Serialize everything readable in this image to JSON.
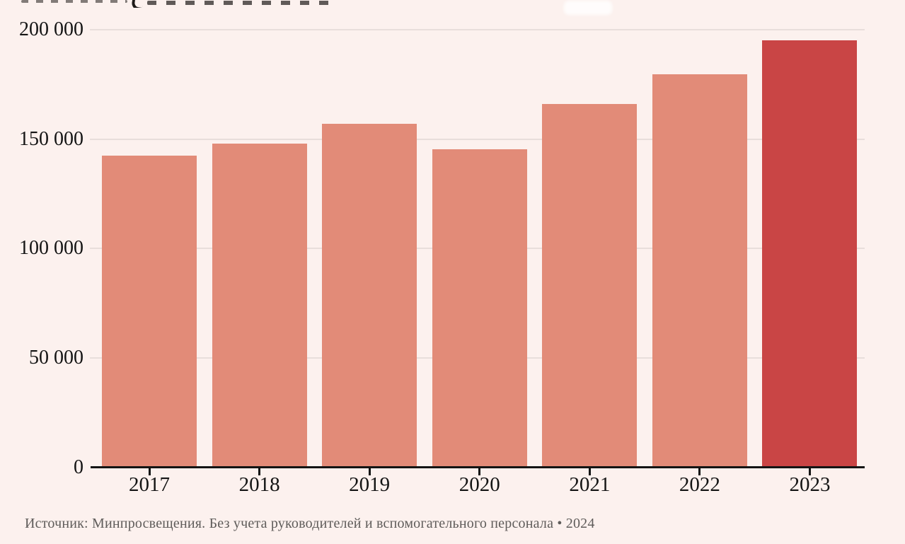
{
  "page": {
    "background_color": "#fcf1ee"
  },
  "footer": {
    "source_text": "Источник: Минпросвещения. Без учета руководителей и вспомогательного персонала • 2024"
  },
  "chart_data": {
    "type": "bar",
    "title": "",
    "xlabel": "",
    "ylabel": "",
    "categories": [
      "2017",
      "2018",
      "2019",
      "2020",
      "2021",
      "2022",
      "2023"
    ],
    "values": [
      142500,
      148000,
      157000,
      145500,
      166000,
      179500,
      195000
    ],
    "highlight_category": "2023",
    "ylim": [
      0,
      200000
    ],
    "yticks": [
      0,
      50000,
      100000,
      150000,
      200000
    ],
    "ytick_labels": [
      "0",
      "50 000",
      "100 000",
      "150 000",
      "200 000"
    ],
    "grid": "horizontal",
    "legend": "none",
    "colors": {
      "bar_default": "#e28b78",
      "bar_highlight": "#c94545",
      "axis": "#141414",
      "gridline": "#e8dedb",
      "tick_label": "#141414",
      "source_text": "#5f5c5a",
      "background": "#fcf1ee"
    }
  }
}
